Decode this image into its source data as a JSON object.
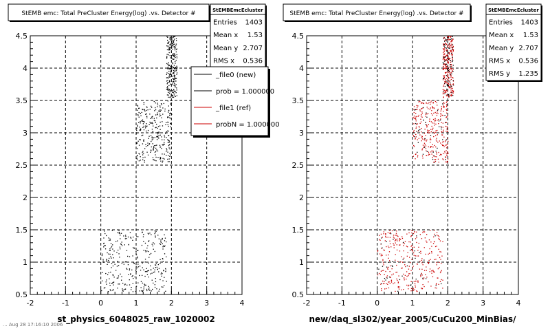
{
  "colors": {
    "new": "#000000",
    "ref": "#cc0000"
  },
  "footer_timestamp": "... Aug 28 17:16:10 2006",
  "chart_data": [
    {
      "type": "scatter",
      "title": "StEMB emc: Total PreCluster Energy(log) .vs. Detector #",
      "xlabel": "st_physics_6048025_raw_1020002",
      "xlim": [
        -2,
        4
      ],
      "ylim": [
        0.5,
        4.5
      ],
      "xticks": [
        "-2",
        "-1",
        "0",
        "1",
        "2",
        "3",
        "4"
      ],
      "yticks": [
        "0.5",
        "1",
        "1.5",
        "2",
        "2.5",
        "3",
        "3.5",
        "4",
        "4.5"
      ],
      "grid": true,
      "stats": {
        "name": "StEMBEmcEcluster",
        "rows": [
          {
            "label": "Entries",
            "value": "1403"
          },
          {
            "label": "Mean x",
            "value": "1.53"
          },
          {
            "label": "Mean y",
            "value": "2.707"
          },
          {
            "label": "RMS x",
            "value": "0.536"
          }
        ]
      },
      "legend": {
        "placement": "right",
        "entries": [
          {
            "label": "_file0 (new)",
            "color": "#000000"
          },
          {
            "label": "prob = 1.000000",
            "color": "#000000"
          },
          {
            "label": "_file1 (ref)",
            "color": "#cc0000"
          },
          {
            "label": "probN = 1.000000",
            "color": "#cc0000"
          }
        ]
      },
      "series": [
        {
          "color": "#000000",
          "clusters": [
            {
              "x": [
                1.85,
                2.15
              ],
              "y": [
                3.55,
                4.5
              ],
              "n": 260
            },
            {
              "x": [
                1.0,
                2.0
              ],
              "y": [
                2.55,
                3.5
              ],
              "n": 300
            },
            {
              "x": [
                0.0,
                1.85
              ],
              "y": [
                0.55,
                1.5
              ],
              "n": 330
            }
          ]
        }
      ]
    },
    {
      "type": "scatter",
      "title": "StEMB emc: Total PreCluster Energy(log) .vs. Detector #",
      "xlabel": "new/daq_sl302/year_2005/CuCu200_MinBias/",
      "xlim": [
        -2,
        4
      ],
      "ylim": [
        0.5,
        4.5
      ],
      "xticks": [
        "-2",
        "-1",
        "0",
        "1",
        "2",
        "3",
        "4"
      ],
      "yticks": [
        "0.5",
        "1",
        "1.5",
        "2",
        "2.5",
        "3",
        "3.5",
        "4",
        "4.5"
      ],
      "grid": true,
      "stats": {
        "name": "StEMBEmcEcluster",
        "rows": [
          {
            "label": "Entries",
            "value": "1403"
          },
          {
            "label": "Mean x",
            "value": "1.53"
          },
          {
            "label": "Mean y",
            "value": "2.707"
          },
          {
            "label": "RMS x",
            "value": "0.536"
          },
          {
            "label": "RMS y",
            "value": "1.235"
          }
        ]
      },
      "series": [
        {
          "color": "#cc0000",
          "clusters": [
            {
              "x": [
                1.85,
                2.15
              ],
              "y": [
                3.55,
                4.5
              ],
              "n": 260
            },
            {
              "x": [
                1.0,
                2.0
              ],
              "y": [
                2.55,
                3.5
              ],
              "n": 300
            },
            {
              "x": [
                0.0,
                1.85
              ],
              "y": [
                0.55,
                1.5
              ],
              "n": 330
            }
          ]
        },
        {
          "color": "#000000",
          "clusters": [
            {
              "x": [
                1.85,
                2.15
              ],
              "y": [
                3.55,
                4.5
              ],
              "n": 80
            },
            {
              "x": [
                1.0,
                2.0
              ],
              "y": [
                2.55,
                3.5
              ],
              "n": 40
            },
            {
              "x": [
                0.0,
                1.85
              ],
              "y": [
                0.55,
                1.5
              ],
              "n": 40
            }
          ]
        }
      ]
    }
  ]
}
